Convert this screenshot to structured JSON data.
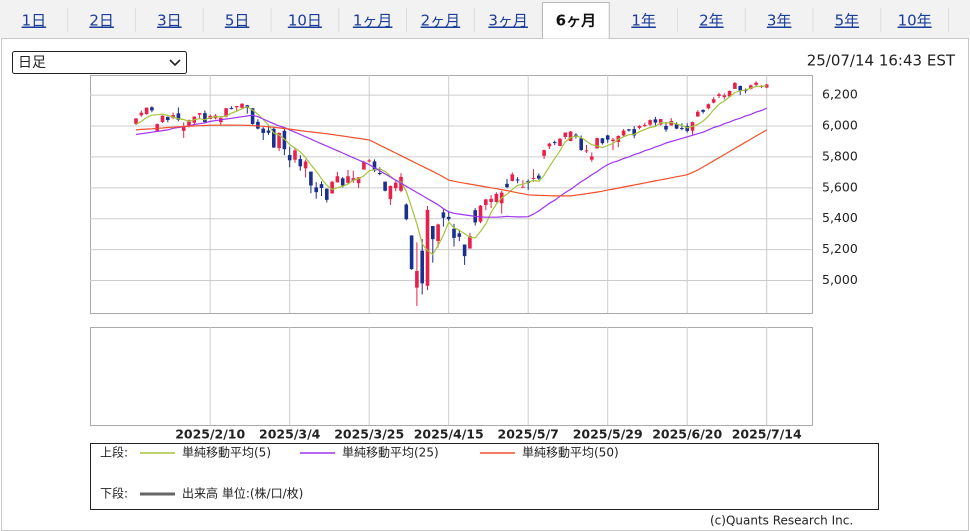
{
  "tabs": [
    "1日",
    "2日",
    "3日",
    "5日",
    "10日",
    "1ヶ月",
    "2ヶ月",
    "3ヶ月",
    "6ヶ月",
    "1年",
    "2年",
    "3年",
    "5年",
    "10年"
  ],
  "active_tab": 8,
  "interval": "日足",
  "timestamp": "25/07/14 16:43 EST",
  "copyright": "(c)Quants Research Inc.",
  "chart_data": {
    "type": "candlestick",
    "upper_label": "上段:",
    "lower_label": "下段:",
    "up_color": "#e8214a",
    "down_color": "#1b2f8f",
    "grid": true,
    "ylim": [
      4790,
      6330
    ],
    "yticks": [
      {
        "value": 5000,
        "label": "5,000"
      },
      {
        "value": 5200,
        "label": "5,200"
      },
      {
        "value": 5400,
        "label": "5,400"
      },
      {
        "value": 5600,
        "label": "5,600"
      },
      {
        "value": 5800,
        "label": "5,800"
      },
      {
        "value": 6000,
        "label": "6,000"
      },
      {
        "value": 6200,
        "label": "6,200"
      }
    ],
    "categories": [
      null,
      null,
      null,
      null,
      null,
      null,
      null,
      null,
      null,
      null,
      null,
      null,
      null,
      null,
      "2025/2/10",
      null,
      null,
      null,
      null,
      null,
      null,
      null,
      null,
      null,
      null,
      null,
      null,
      null,
      null,
      "2025/3/4",
      null,
      null,
      null,
      null,
      null,
      null,
      null,
      null,
      null,
      null,
      null,
      null,
      null,
      null,
      "2025/3/25",
      null,
      null,
      null,
      null,
      null,
      null,
      null,
      null,
      null,
      null,
      null,
      null,
      null,
      null,
      "2025/4/15",
      null,
      null,
      null,
      null,
      null,
      null,
      null,
      null,
      null,
      null,
      null,
      null,
      null,
      null,
      "2025/5/7",
      null,
      null,
      null,
      null,
      null,
      null,
      null,
      null,
      null,
      null,
      null,
      null,
      null,
      null,
      "2025/5/29",
      null,
      null,
      null,
      null,
      null,
      null,
      null,
      null,
      null,
      null,
      null,
      null,
      null,
      null,
      "2025/6/20",
      null,
      null,
      null,
      null,
      null,
      null,
      null,
      null,
      null,
      null,
      null,
      null,
      null,
      null,
      "2025/7/14"
    ],
    "ohlc": [
      [
        6014,
        6051,
        6006,
        6049
      ],
      [
        6069,
        6100,
        6060,
        6086
      ],
      [
        6077,
        6119,
        6074,
        6119
      ],
      [
        6121,
        6128,
        6089,
        6101
      ],
      [
        5969,
        6017,
        5962,
        6012
      ],
      [
        6026,
        6069,
        6020,
        6067
      ],
      [
        6058,
        6062,
        6024,
        6039
      ],
      [
        6053,
        6087,
        6045,
        6071
      ],
      [
        6082,
        6120,
        6030,
        6040
      ],
      [
        5969,
        6023,
        5923,
        5994
      ],
      [
        5999,
        6042,
        5990,
        6037
      ],
      [
        6021,
        6062,
        6007,
        6061
      ],
      [
        6073,
        6084,
        6045,
        6083
      ],
      [
        6083,
        6101,
        6020,
        6026
      ],
      [
        6046,
        6074,
        6046,
        6066
      ],
      [
        6050,
        6076,
        6043,
        6068
      ],
      [
        6025,
        6063,
        6003,
        6052
      ],
      [
        6061,
        6116,
        6056,
        6115
      ],
      [
        6116,
        6128,
        6108,
        6114
      ],
      [
        6121,
        6130,
        6099,
        6129
      ],
      [
        6118,
        6147,
        6112,
        6144
      ],
      [
        6134,
        6137,
        6080,
        6117
      ],
      [
        6115,
        6115,
        6008,
        6013
      ],
      [
        6027,
        6044,
        5978,
        5983
      ],
      [
        5983,
        5993,
        5909,
        5955
      ],
      [
        5971,
        6010,
        5942,
        5956
      ],
      [
        5982,
        5994,
        5858,
        5861
      ],
      [
        5857,
        5959,
        5837,
        5955
      ],
      [
        5969,
        5987,
        5811,
        5850
      ],
      [
        5812,
        5866,
        5733,
        5778
      ],
      [
        5782,
        5860,
        5762,
        5842
      ],
      [
        5786,
        5812,
        5711,
        5739
      ],
      [
        5726,
        5783,
        5667,
        5770
      ],
      [
        5705,
        5705,
        5565,
        5615
      ],
      [
        5603,
        5637,
        5529,
        5572
      ],
      [
        5624,
        5642,
        5547,
        5599
      ],
      [
        5594,
        5597,
        5505,
        5522
      ],
      [
        5563,
        5645,
        5563,
        5639
      ],
      [
        5635,
        5704,
        5635,
        5675
      ],
      [
        5661,
        5670,
        5602,
        5615
      ],
      [
        5632,
        5715,
        5622,
        5675
      ],
      [
        5646,
        5711,
        5632,
        5663
      ],
      [
        5630,
        5670,
        5598,
        5668
      ],
      [
        5718,
        5776,
        5718,
        5767
      ],
      [
        5772,
        5786,
        5765,
        5777
      ],
      [
        5771,
        5784,
        5703,
        5712
      ],
      [
        5696,
        5733,
        5681,
        5693
      ],
      [
        5640,
        5640,
        5577,
        5581
      ],
      [
        5527,
        5615,
        5489,
        5612
      ],
      [
        5598,
        5652,
        5578,
        5633
      ],
      [
        5581,
        5695,
        5571,
        5671
      ],
      [
        5492,
        5500,
        5390,
        5397
      ],
      [
        5292,
        5292,
        5069,
        5074
      ],
      [
        4954,
        5247,
        4835,
        5062
      ],
      [
        5193,
        5268,
        4910,
        4982
      ],
      [
        4966,
        5482,
        4938,
        5457
      ],
      [
        5353,
        5353,
        5116,
        5268
      ],
      [
        5256,
        5368,
        5214,
        5363
      ],
      [
        5441,
        5460,
        5349,
        5406
      ],
      [
        5412,
        5450,
        5386,
        5397
      ],
      [
        5335,
        5367,
        5220,
        5276
      ],
      [
        5305,
        5329,
        5255,
        5283
      ],
      [
        5233,
        5233,
        5101,
        5158
      ],
      [
        5207,
        5309,
        5207,
        5288
      ],
      [
        5455,
        5469,
        5356,
        5376
      ],
      [
        5381,
        5489,
        5371,
        5485
      ],
      [
        5489,
        5528,
        5455,
        5525
      ],
      [
        5508,
        5553,
        5468,
        5529
      ],
      [
        5508,
        5571,
        5505,
        5561
      ],
      [
        5500,
        5581,
        5433,
        5569
      ],
      [
        5626,
        5658,
        5597,
        5604
      ],
      [
        5645,
        5700,
        5641,
        5687
      ],
      [
        5654,
        5669,
        5629,
        5650
      ],
      [
        5606,
        5650,
        5605,
        5607
      ],
      [
        5644,
        5654,
        5587,
        5631
      ],
      [
        5663,
        5721,
        5639,
        5664
      ],
      [
        5679,
        5692,
        5651,
        5660
      ],
      [
        5807,
        5847,
        5786,
        5844
      ],
      [
        5868,
        5891,
        5851,
        5886
      ],
      [
        5896,
        5906,
        5876,
        5892
      ],
      [
        5871,
        5924,
        5868,
        5917
      ],
      [
        5929,
        5958,
        5915,
        5958
      ],
      [
        5903,
        5968,
        5901,
        5964
      ],
      [
        5944,
        5953,
        5919,
        5940
      ],
      [
        5920,
        5939,
        5839,
        5845
      ],
      [
        5841,
        5878,
        5825,
        5842
      ],
      [
        5782,
        5829,
        5768,
        5803
      ],
      [
        5855,
        5924,
        5855,
        5922
      ],
      [
        5920,
        5923,
        5880,
        5889
      ],
      [
        5939,
        5944,
        5892,
        5912
      ],
      [
        5903,
        5922,
        5843,
        5912
      ],
      [
        5897,
        5939,
        5862,
        5936
      ],
      [
        5939,
        5981,
        5930,
        5970
      ],
      [
        5979,
        5981,
        5963,
        5971
      ],
      [
        5980,
        5999,
        5921,
        5939
      ],
      [
        5988,
        6006,
        5979,
        6000
      ],
      [
        6004,
        6022,
        5994,
        6006
      ],
      [
        6009,
        6043,
        6000,
        6038
      ],
      [
        6043,
        6059,
        6003,
        6022
      ],
      [
        6010,
        6046,
        6003,
        6045
      ],
      [
        6000,
        6026,
        5963,
        5977
      ],
      [
        6004,
        6051,
        6004,
        6033
      ],
      [
        6012,
        6024,
        5979,
        5983
      ],
      [
        5987,
        6018,
        5972,
        5981
      ],
      [
        5999,
        6018,
        5957,
        5968
      ],
      [
        5970,
        6028,
        5943,
        6025
      ],
      [
        6062,
        6102,
        6059,
        6092
      ],
      [
        6104,
        6108,
        6080,
        6092
      ],
      [
        6114,
        6146,
        6108,
        6141
      ],
      [
        6151,
        6187,
        6146,
        6173
      ],
      [
        6194,
        6215,
        6181,
        6205
      ],
      [
        6188,
        6211,
        6172,
        6198
      ],
      [
        6191,
        6229,
        6188,
        6227
      ],
      [
        6240,
        6284,
        6240,
        6279
      ],
      [
        6259,
        6262,
        6201,
        6230
      ],
      [
        6232,
        6243,
        6211,
        6226
      ],
      [
        6239,
        6269,
        6237,
        6263
      ],
      [
        6266,
        6290,
        6253,
        6280
      ],
      [
        6255,
        6266,
        6245,
        6260
      ],
      [
        6249,
        6273,
        6245,
        6269
      ]
    ],
    "series": [
      {
        "name": "単純移動平均(5)",
        "color": "#a5c43a",
        "values": [
          6010,
          6030,
          6055,
          6070,
          6073,
          6077,
          6068,
          6058,
          6046,
          6042,
          6030,
          6041,
          6047,
          6040,
          6055,
          6061,
          6059,
          6065,
          6083,
          6096,
          6111,
          6124,
          6103,
          6077,
          6042,
          6005,
          5954,
          5942,
          5915,
          5880,
          5857,
          5833,
          5796,
          5749,
          5708,
          5659,
          5616,
          5589,
          5601,
          5610,
          5625,
          5649,
          5659,
          5678,
          5710,
          5717,
          5723,
          5706,
          5675,
          5646,
          5638,
          5577,
          5473,
          5367,
          5237,
          5194,
          5169,
          5226,
          5295,
          5378,
          5342,
          5325,
          5304,
          5280,
          5276,
          5318,
          5366,
          5441,
          5495,
          5534,
          5558,
          5590,
          5616,
          5623,
          5636,
          5648,
          5642,
          5681,
          5737,
          5789,
          5840,
          5899,
          5925,
          5936,
          5925,
          5901,
          5879,
          5870,
          5860,
          5874,
          5888,
          5914,
          5930,
          5944,
          5946,
          5963,
          5977,
          5991,
          5997,
          6022,
          6018,
          6023,
          6012,
          6004,
          5988,
          5998,
          6010,
          6032,
          6064,
          6105,
          6141,
          6162,
          6189,
          6216,
          6228,
          6232,
          6245,
          6256,
          6257,
          6260
        ]
      },
      {
        "name": "単純移動平均(25)",
        "color": "#a035f0",
        "values": [
          5945,
          5950,
          5955,
          5960,
          5965,
          5970,
          5975,
          5985,
          5990,
          5995,
          6000,
          6010,
          6015,
          6020,
          6030,
          6035,
          6040,
          6045,
          6050,
          6055,
          6060,
          6065,
          6070,
          6060,
          6045,
          6030,
          6015,
          6000,
          5990,
          5975,
          5960,
          5945,
          5930,
          5915,
          5900,
          5885,
          5870,
          5855,
          5840,
          5825,
          5810,
          5795,
          5780,
          5765,
          5750,
          5730,
          5710,
          5690,
          5670,
          5650,
          5630,
          5610,
          5590,
          5570,
          5550,
          5530,
          5510,
          5490,
          5465,
          5445,
          5435,
          5430,
          5425,
          5420,
          5415,
          5412,
          5410,
          5410,
          5410,
          5412,
          5415,
          5413,
          5412,
          5412,
          5413,
          5430,
          5450,
          5475,
          5500,
          5520,
          5545,
          5570,
          5590,
          5615,
          5640,
          5660,
          5685,
          5705,
          5730,
          5750,
          5765,
          5775,
          5790,
          5800,
          5815,
          5825,
          5840,
          5850,
          5865,
          5875,
          5890,
          5900,
          5910,
          5920,
          5930,
          5940,
          5950,
          5960,
          5975,
          5990,
          6000,
          6015,
          6025,
          6040,
          6050,
          6065,
          6075,
          6090,
          6100,
          6115
        ]
      },
      {
        "name": "単純移動平均(50)",
        "color": "#f0502a",
        "values": [
          5975,
          5978,
          5980,
          5982,
          5985,
          5987,
          5990,
          5992,
          5995,
          5997,
          6000,
          6000,
          6002,
          6003,
          6005,
          6005,
          6005,
          6006,
          6006,
          6005,
          6005,
          6004,
          6003,
          6000,
          5998,
          5995,
          5992,
          5988,
          5984,
          5980,
          5975,
          5970,
          5966,
          5962,
          5958,
          5954,
          5950,
          5945,
          5940,
          5935,
          5930,
          5925,
          5920,
          5915,
          5910,
          5893,
          5876,
          5859,
          5842,
          5825,
          5808,
          5791,
          5774,
          5757,
          5740,
          5723,
          5706,
          5689,
          5670,
          5650,
          5643,
          5636,
          5630,
          5624,
          5618,
          5612,
          5606,
          5600,
          5594,
          5588,
          5582,
          5575,
          5568,
          5562,
          5555,
          5553,
          5551,
          5550,
          5549,
          5548,
          5548,
          5548,
          5548,
          5552,
          5557,
          5562,
          5567,
          5572,
          5578,
          5585,
          5592,
          5598,
          5605,
          5612,
          5618,
          5625,
          5632,
          5638,
          5645,
          5652,
          5658,
          5665,
          5672,
          5678,
          5685,
          5700,
          5715,
          5735,
          5755,
          5775,
          5795,
          5815,
          5835,
          5855,
          5875,
          5895,
          5915,
          5935,
          5955,
          5975
        ]
      }
    ],
    "volume": {
      "name": "出来高 単位:(株/口/枚)",
      "color": "#666666"
    }
  }
}
